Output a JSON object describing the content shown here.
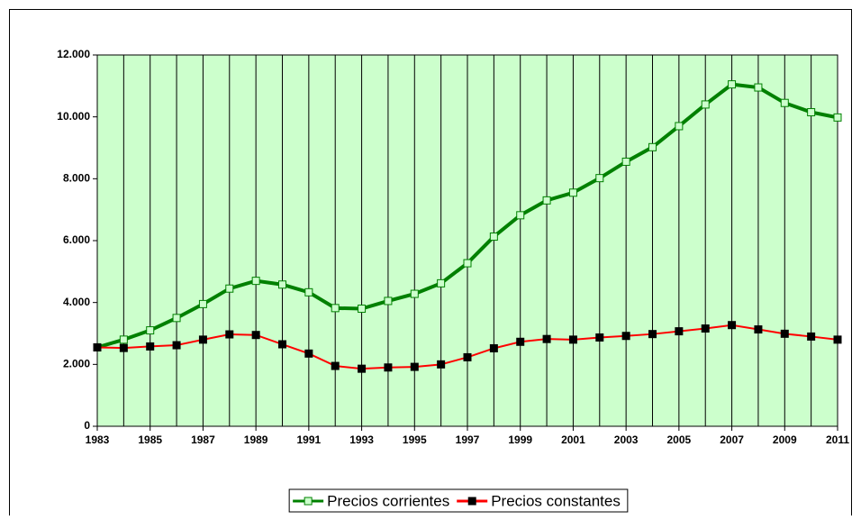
{
  "chart_data": {
    "type": "line",
    "x": [
      1983,
      1984,
      1985,
      1986,
      1987,
      1988,
      1989,
      1990,
      1991,
      1992,
      1993,
      1994,
      1995,
      1996,
      1997,
      1998,
      1999,
      2000,
      2001,
      2002,
      2003,
      2004,
      2005,
      2006,
      2007,
      2008,
      2009,
      2010,
      2011
    ],
    "series": [
      {
        "name": "Precios corrientes",
        "color": "#008000",
        "marker_color": "#ccffcc",
        "values": [
          2550,
          2800,
          3100,
          3500,
          3950,
          4450,
          4700,
          4580,
          4330,
          3820,
          3800,
          4050,
          4280,
          4620,
          5270,
          6130,
          6820,
          7300,
          7550,
          8020,
          8550,
          9020,
          9700,
          10400,
          11050,
          10950,
          10450,
          10150,
          9980
        ]
      },
      {
        "name": "Precios constantes",
        "color": "#ff0000",
        "marker_color": "#000000",
        "values": [
          2550,
          2530,
          2580,
          2620,
          2800,
          2970,
          2950,
          2650,
          2350,
          1950,
          1860,
          1900,
          1920,
          2000,
          2230,
          2520,
          2730,
          2820,
          2800,
          2870,
          2920,
          2980,
          3070,
          3160,
          3270,
          3130,
          2990,
          2900,
          2800
        ]
      }
    ],
    "xlim": [
      1983,
      2011
    ],
    "xticks": [
      1983,
      1985,
      1987,
      1989,
      1991,
      1993,
      1995,
      1997,
      1999,
      2001,
      2003,
      2005,
      2007,
      2009,
      2011
    ],
    "ylim": [
      0,
      12000
    ],
    "yticks": [
      0,
      {
        "value": 2000,
        "label": "2.000"
      },
      {
        "value": 4000,
        "label": "4.000"
      },
      {
        "value": 6000,
        "label": "6.000"
      },
      {
        "value": 8000,
        "label": "8.000"
      },
      {
        "value": 10000,
        "label": "10.000"
      },
      {
        "value": 12000,
        "label": "12.000"
      }
    ],
    "plot_background": "#ccffcc",
    "grid": "x",
    "legend": "bottom"
  }
}
